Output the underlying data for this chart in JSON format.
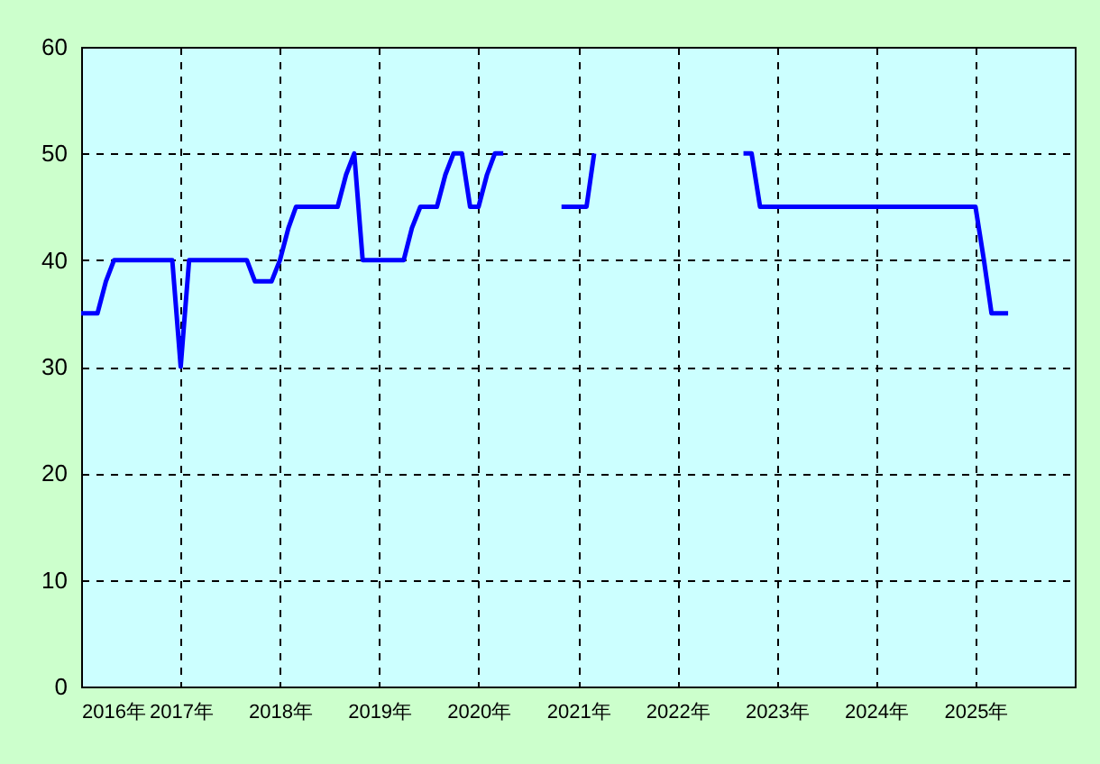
{
  "chart_data": {
    "type": "line",
    "x": [
      "2016-01",
      "2016-02",
      "2016-03",
      "2016-04",
      "2016-05",
      "2016-06",
      "2016-07",
      "2016-08",
      "2016-09",
      "2016-10",
      "2016-11",
      "2016-12",
      "2017-01",
      "2017-02",
      "2017-03",
      "2017-04",
      "2017-05",
      "2017-06",
      "2017-07",
      "2017-08",
      "2017-09",
      "2017-10",
      "2017-11",
      "2017-12",
      "2018-01",
      "2018-02",
      "2018-03",
      "2018-04",
      "2018-05",
      "2018-06",
      "2018-07",
      "2018-08",
      "2018-09",
      "2018-10",
      "2018-11",
      "2018-12",
      "2019-01",
      "2019-02",
      "2019-03",
      "2019-04",
      "2019-05",
      "2019-06",
      "2019-07",
      "2019-08",
      "2019-09",
      "2019-10",
      "2019-11",
      "2019-12",
      "2020-01",
      "2020-02",
      "2020-03",
      "2020-04",
      "2020-05",
      "2020-06",
      "2020-07",
      "2020-08",
      "2020-09",
      "2020-10",
      "2020-11",
      "2020-12",
      "2021-01",
      "2021-02",
      "2021-03",
      "2021-04",
      "2021-05",
      "2021-06",
      "2021-07",
      "2021-08",
      "2021-09",
      "2021-10",
      "2021-11",
      "2021-12",
      "2022-01",
      "2022-02",
      "2022-03",
      "2022-04",
      "2022-05",
      "2022-06",
      "2022-07",
      "2022-08",
      "2022-09",
      "2022-10",
      "2022-11",
      "2022-12",
      "2023-01",
      "2023-02",
      "2023-03",
      "2023-04",
      "2023-05",
      "2023-06",
      "2023-07",
      "2023-08",
      "2023-09",
      "2023-10",
      "2023-11",
      "2023-12",
      "2024-01",
      "2024-02",
      "2024-03",
      "2024-04",
      "2024-05",
      "2024-06",
      "2024-07",
      "2024-08",
      "2024-09",
      "2024-10",
      "2024-11",
      "2024-12",
      "2025-01",
      "2025-02",
      "2025-03",
      "2025-04",
      "2025-05"
    ],
    "series": [
      {
        "color": "#0000ff",
        "values": [
          35,
          35,
          35,
          38,
          40,
          40,
          40,
          40,
          40,
          40,
          40,
          40,
          30,
          40,
          40,
          40,
          40,
          40,
          40,
          40,
          40,
          38,
          38,
          38,
          40,
          43,
          45,
          45,
          45,
          45,
          45,
          45,
          48,
          50,
          40,
          40,
          40,
          40,
          40,
          40,
          43,
          45,
          45,
          45,
          48,
          50,
          50,
          45,
          45,
          48,
          50,
          50,
          null,
          null,
          null,
          null,
          null,
          null,
          45,
          45,
          45,
          45,
          50,
          null,
          null,
          null,
          null,
          null,
          null,
          null,
          null,
          null,
          null,
          null,
          null,
          null,
          null,
          null,
          null,
          null,
          50,
          50,
          45,
          45,
          45,
          45,
          45,
          45,
          45,
          45,
          45,
          45,
          45,
          45,
          45,
          45,
          45,
          45,
          45,
          45,
          45,
          45,
          45,
          45,
          45,
          45,
          45,
          45,
          45,
          40,
          35,
          35,
          35
        ]
      }
    ],
    "xlim": [
      "2016-01",
      "2026-01"
    ],
    "xticks": [
      {
        "value": "2016-01",
        "label": "2016年"
      },
      {
        "value": "2017-01",
        "label": "2017年"
      },
      {
        "value": "2018-01",
        "label": "2018年"
      },
      {
        "value": "2019-01",
        "label": "2019年"
      },
      {
        "value": "2020-01",
        "label": "2020年"
      },
      {
        "value": "2021-01",
        "label": "2021年"
      },
      {
        "value": "2022-01",
        "label": "2022年"
      },
      {
        "value": "2023-01",
        "label": "2023年"
      },
      {
        "value": "2024-01",
        "label": "2024年"
      },
      {
        "value": "2025-01",
        "label": "2025年"
      }
    ],
    "ylim": [
      0,
      60
    ],
    "yticks": [
      0,
      10,
      20,
      30,
      40,
      50,
      60
    ],
    "grid": true,
    "marker": "none",
    "line_style": "solid"
  }
}
